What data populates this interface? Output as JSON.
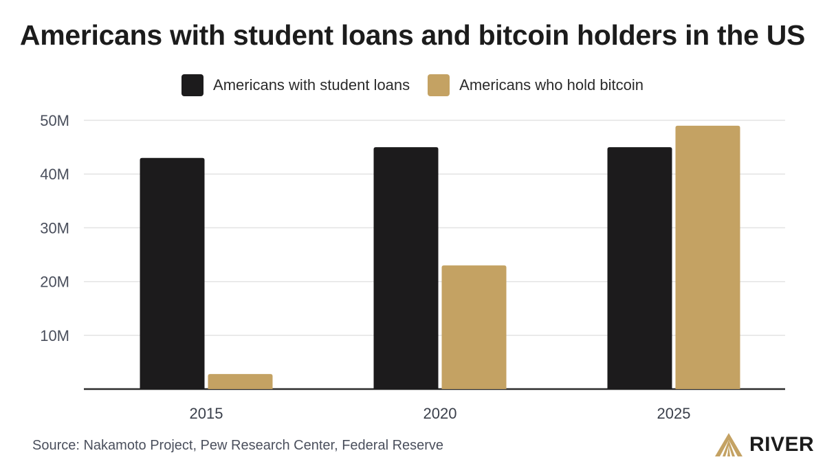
{
  "chart_data": {
    "type": "bar",
    "title": "Americans with student loans and bitcoin holders in the US",
    "categories": [
      "2015",
      "2020",
      "2025"
    ],
    "series": [
      {
        "name": "Americans with student loans",
        "values": [
          43,
          45,
          45
        ],
        "color": "#1c1b1c"
      },
      {
        "name": "Americans who hold bitcoin",
        "values": [
          2.8,
          23,
          49
        ],
        "color": "#c4a263"
      }
    ],
    "yticks": [
      "10M",
      "20M",
      "30M",
      "40M",
      "50M"
    ],
    "ytick_values": [
      10,
      20,
      30,
      40,
      50
    ],
    "ylim": [
      0,
      50
    ],
    "unit": "M",
    "grid": true,
    "legend_position": "top-center"
  },
  "footer": {
    "source": "Source: Nakamoto Project, Pew Research Center, Federal Reserve"
  },
  "logo": {
    "text": "RIVER",
    "icon": "river-logo-icon",
    "color": "#c4a263"
  }
}
